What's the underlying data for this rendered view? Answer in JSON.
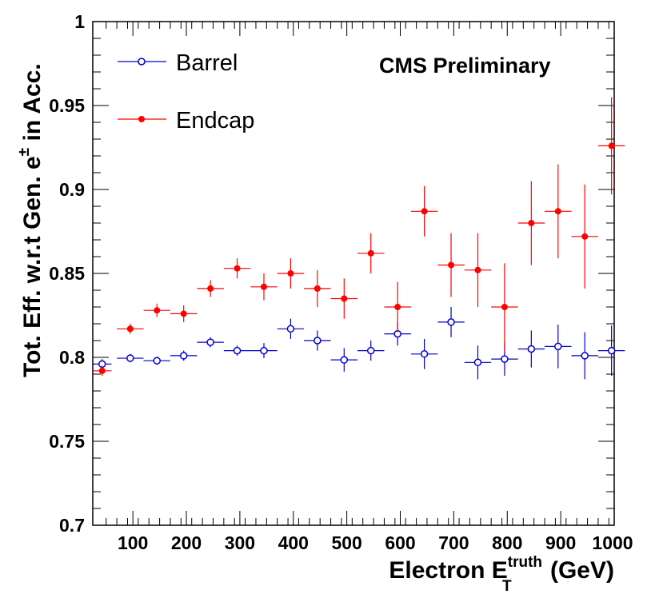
{
  "chart_data": {
    "type": "scatter",
    "xlabel": "Electron E",
    "xlabel_sub": "T",
    "xlabel_sup": "truth",
    "xlabel_unit": "(GeV)",
    "ylabel": "Tot. Eff. w.r.t Gen. e",
    "ylabel_sup": "±",
    "ylabel_tail": "in Acc.",
    "annotation": "CMS Preliminary",
    "xlim": [
      25,
      1000
    ],
    "ylim": [
      0.7,
      1.0
    ],
    "x_ticks": [
      100,
      200,
      300,
      400,
      500,
      600,
      700,
      800,
      900,
      1000
    ],
    "y_ticks": [
      0.7,
      0.75,
      0.8,
      0.85,
      0.9,
      0.95,
      1
    ],
    "y_tick_labels": [
      "0.7",
      "0.75",
      "0.8",
      "0.85",
      "0.9",
      "0.95",
      "1"
    ],
    "legend_position": "top-left",
    "grid": false,
    "series": [
      {
        "name": "Barrel",
        "color": "#0000cc",
        "marker": "open-circle",
        "x": [
          42.5,
          95,
          145,
          195,
          245,
          295,
          345,
          395,
          445,
          495,
          545,
          595,
          645,
          695,
          745,
          795,
          845,
          895,
          945,
          995
        ],
        "x_err": [
          17.5,
          25,
          25,
          25,
          25,
          25,
          25,
          25,
          25,
          25,
          25,
          25,
          25,
          25,
          25,
          25,
          25,
          25,
          25,
          25
        ],
        "y": [
          0.796,
          0.7995,
          0.798,
          0.801,
          0.809,
          0.804,
          0.804,
          0.817,
          0.81,
          0.7985,
          0.804,
          0.814,
          0.802,
          0.821,
          0.797,
          0.799,
          0.805,
          0.8065,
          0.801,
          0.804
        ],
        "y_err": [
          0.003,
          0.0025,
          0.0025,
          0.003,
          0.003,
          0.003,
          0.0045,
          0.006,
          0.006,
          0.007,
          0.006,
          0.007,
          0.009,
          0.009,
          0.01,
          0.01,
          0.011,
          0.013,
          0.014,
          0.015
        ]
      },
      {
        "name": "Endcap",
        "color": "#ff0000",
        "marker": "filled-circle",
        "x": [
          42.5,
          95,
          145,
          195,
          245,
          295,
          345,
          395,
          445,
          495,
          545,
          595,
          645,
          695,
          745,
          795,
          845,
          895,
          945,
          995
        ],
        "x_err": [
          17.5,
          25,
          25,
          25,
          25,
          25,
          25,
          25,
          25,
          25,
          25,
          25,
          25,
          25,
          25,
          25,
          25,
          25,
          25,
          25
        ],
        "y": [
          0.792,
          0.817,
          0.828,
          0.826,
          0.841,
          0.853,
          0.842,
          0.85,
          0.841,
          0.835,
          0.862,
          0.83,
          0.887,
          0.855,
          0.852,
          0.83,
          0.88,
          0.887,
          0.872,
          0.926
        ],
        "y_err": [
          0.003,
          0.003,
          0.004,
          0.005,
          0.005,
          0.006,
          0.008,
          0.009,
          0.011,
          0.012,
          0.012,
          0.015,
          0.015,
          0.019,
          0.022,
          0.026,
          0.025,
          0.028,
          0.031,
          0.029
        ]
      }
    ]
  }
}
